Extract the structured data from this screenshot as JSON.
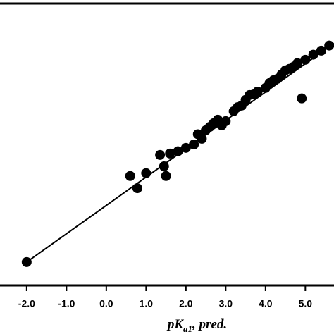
{
  "chart_data": {
    "type": "scatter",
    "xlabel_parts": [
      "pK",
      "a1",
      ", pred."
    ],
    "xlim": [
      -2.67,
      5.72
    ],
    "ylim": [
      -2.82,
      7.1
    ],
    "xticks": [
      {
        "value": -2,
        "label": "-2.0"
      },
      {
        "value": -1,
        "label": "-1.0"
      },
      {
        "value": 0,
        "label": "0.0"
      },
      {
        "value": 1,
        "label": "1.0"
      },
      {
        "value": 2,
        "label": "2.0"
      },
      {
        "value": 3,
        "label": "3.0"
      },
      {
        "value": 4,
        "label": "4.0"
      },
      {
        "value": 5,
        "label": "5.0"
      }
    ],
    "color": "#000000",
    "x": [
      -2.0,
      0.6,
      0.78,
      1.0,
      1.35,
      1.45,
      1.5,
      1.6,
      1.8,
      2.0,
      2.2,
      2.4,
      2.5,
      2.6,
      2.7,
      2.8,
      2.9,
      3.0,
      3.2,
      3.4,
      3.5,
      3.6,
      3.8,
      4.0,
      4.1,
      4.3,
      4.4,
      4.5,
      4.7,
      4.8,
      4.91,
      5.0,
      5.2,
      5.4,
      5.6,
      3.3,
      3.7,
      4.2,
      2.3,
      4.6
    ],
    "y": [
      -2.0,
      1.03,
      0.6,
      1.13,
      1.77,
      1.37,
      1.03,
      1.82,
      1.9,
      2.02,
      2.14,
      2.34,
      2.64,
      2.76,
      2.89,
      3.01,
      2.81,
      2.96,
      3.31,
      3.51,
      3.71,
      3.88,
      4.0,
      4.13,
      4.3,
      4.45,
      4.6,
      4.75,
      4.87,
      5.0,
      3.76,
      5.12,
      5.3,
      5.44,
      5.62,
      3.45,
      3.9,
      4.4,
      2.5,
      4.8
    ],
    "fit_line": {
      "x": [
        -2.0,
        5.72
      ],
      "y": [
        -2.0,
        5.7
      ]
    }
  }
}
